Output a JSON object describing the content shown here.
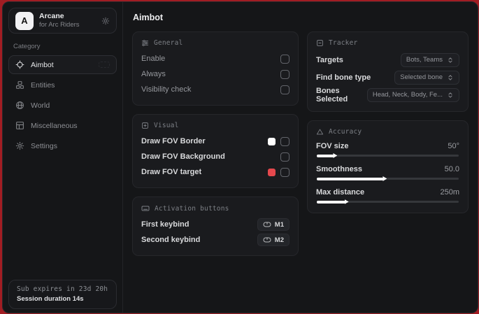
{
  "colors": {
    "desktop_red": "#a21d23",
    "swatch_white": "#ffffff",
    "swatch_red": "#e5484d"
  },
  "logo": {
    "initial": "A",
    "title": "Arcane",
    "subtitle": "for Arc Riders"
  },
  "sidebar": {
    "category_label": "Category",
    "items": [
      {
        "label": "Aimbot"
      },
      {
        "label": "Entities"
      },
      {
        "label": "World"
      },
      {
        "label": "Miscellaneous"
      },
      {
        "label": "Settings"
      }
    ],
    "subscription": {
      "expires": "Sub expires in 23d 20h",
      "session": "Session duration 14s"
    }
  },
  "main": {
    "title": "Aimbot",
    "general": {
      "title": "General",
      "rows": [
        {
          "label": "Enable"
        },
        {
          "label": "Always"
        },
        {
          "label": "Visibility check"
        }
      ]
    },
    "visual": {
      "title": "Visual",
      "rows": [
        {
          "label": "Draw FOV Border",
          "swatch": "#ffffff"
        },
        {
          "label": "Draw FOV Background"
        },
        {
          "label": "Draw FOV target",
          "swatch": "#e5484d"
        }
      ]
    },
    "activation": {
      "title": "Activation buttons",
      "rows": [
        {
          "label": "First keybind",
          "key": "M1"
        },
        {
          "label": "Second keybind",
          "key": "M2"
        }
      ]
    },
    "tracker": {
      "title": "Tracker",
      "rows": [
        {
          "label": "Targets",
          "value": "Bots, Teams"
        },
        {
          "label": "Find bone type",
          "value": "Selected bone"
        },
        {
          "label": "Bones Selected",
          "value": "Head, Neck, Body, Fe..."
        }
      ]
    },
    "accuracy": {
      "title": "Accuracy",
      "rows": [
        {
          "label": "FOV size",
          "value": "50°",
          "percent": 12
        },
        {
          "label": "Smoothness",
          "value": "50.0",
          "percent": 47
        },
        {
          "label": "Max distance",
          "value": "250m",
          "percent": 20
        }
      ]
    }
  }
}
